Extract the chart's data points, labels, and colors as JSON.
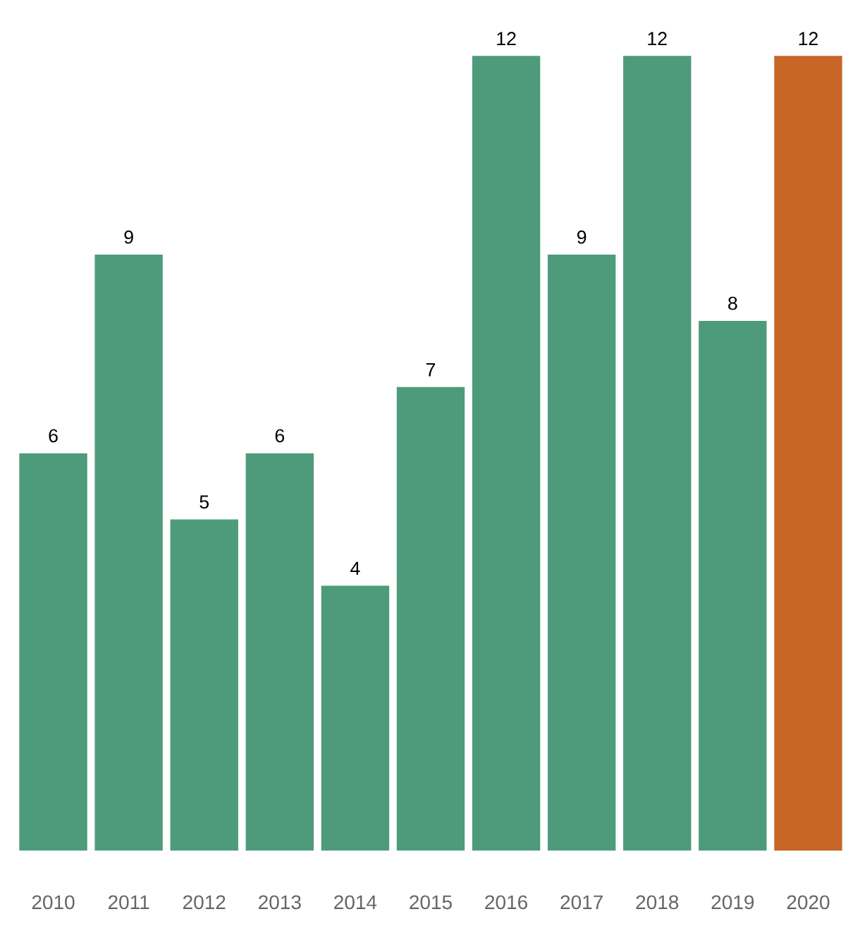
{
  "chart_data": {
    "type": "bar",
    "categories": [
      "2010",
      "2011",
      "2012",
      "2013",
      "2014",
      "2015",
      "2016",
      "2017",
      "2018",
      "2019",
      "2020"
    ],
    "values": [
      6,
      9,
      5,
      6,
      4,
      7,
      12,
      9,
      12,
      8,
      12
    ],
    "colors": [
      "#4e9b7b",
      "#4e9b7b",
      "#4e9b7b",
      "#4e9b7b",
      "#4e9b7b",
      "#4e9b7b",
      "#4e9b7b",
      "#4e9b7b",
      "#4e9b7b",
      "#4e9b7b",
      "#c86628"
    ],
    "ylim": [
      0,
      12
    ],
    "tick_labels": "x",
    "data_labels": true
  }
}
